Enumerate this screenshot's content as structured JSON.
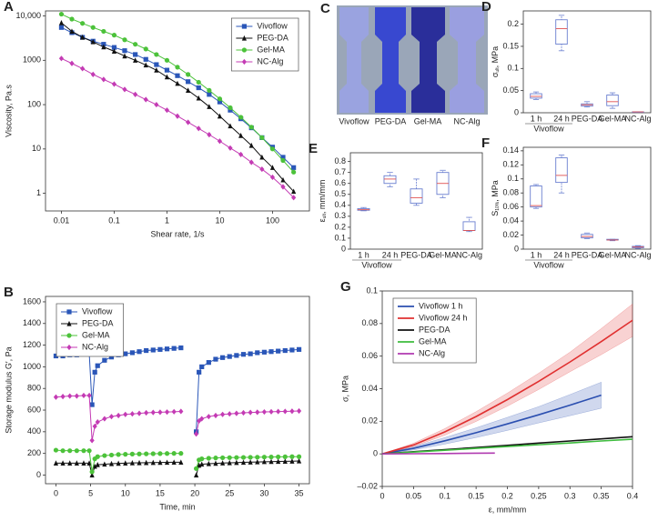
{
  "chart_data": [
    {
      "type": "line",
      "label": "A",
      "xlog": true,
      "ylog": true,
      "legend": "upper right",
      "xlabel": "Shear rate, 1/s",
      "ylabel": "Viscosity, Pa.s",
      "x": [
        0.01,
        0.0158,
        0.0251,
        0.0398,
        0.0631,
        0.1,
        0.158,
        0.251,
        0.398,
        0.631,
        1,
        1.58,
        2.51,
        3.98,
        6.31,
        10,
        15.8,
        25.1,
        39.8,
        63.1,
        100,
        158,
        251
      ],
      "xlim": [
        0.005,
        500
      ],
      "ylim": [
        0.4,
        13000
      ],
      "xticks": [
        0.01,
        0.1,
        1,
        10,
        100
      ],
      "yticks": [
        1,
        10,
        100,
        1000,
        {
          "value": 10000,
          "label": "10,000"
        }
      ],
      "series": [
        {
          "name": "Vivoflow",
          "color": "#2a56b8",
          "marker": "square",
          "values": [
            5500,
            4200,
            3300,
            2700,
            2300,
            1950,
            1650,
            1350,
            1050,
            800,
            600,
            450,
            330,
            240,
            170,
            115,
            75,
            48,
            30,
            18,
            11,
            6.5,
            3.8
          ]
        },
        {
          "name": "PEG-DA",
          "color": "#111111",
          "marker": "triangle",
          "values": [
            7000,
            4500,
            3300,
            2600,
            2000,
            1600,
            1250,
            1000,
            780,
            600,
            420,
            300,
            210,
            140,
            90,
            55,
            33,
            20,
            12,
            6.5,
            3.8,
            2,
            1.1
          ]
        },
        {
          "name": "Gel-MA",
          "color": "#4cc23a",
          "marker": "circle",
          "values": [
            11000,
            8500,
            6800,
            5500,
            4500,
            3700,
            2900,
            2300,
            1800,
            1350,
            1000,
            700,
            480,
            320,
            210,
            135,
            85,
            52,
            31,
            18,
            10,
            5.5,
            3
          ]
        },
        {
          "name": "NC-Alg",
          "color": "#c43bb4",
          "marker": "diamond",
          "values": [
            1100,
            850,
            650,
            480,
            370,
            290,
            220,
            170,
            130,
            100,
            75,
            55,
            40,
            29,
            21,
            15,
            10.5,
            7.5,
            5,
            3.5,
            2.3,
            1.4,
            0.8
          ]
        }
      ]
    },
    {
      "type": "line",
      "label": "B",
      "legend": "upper left",
      "xlabel": "Time, min",
      "ylabel": "Storage modulus G′, Pa",
      "x": [
        0,
        1,
        2,
        3,
        4,
        4.8,
        5.2,
        5.6,
        6,
        7,
        8,
        9,
        10,
        11,
        12,
        13,
        14,
        15,
        16,
        17,
        18,
        19,
        20.2,
        20.6,
        21,
        22,
        23,
        24,
        25,
        26,
        27,
        28,
        29,
        30,
        31,
        32,
        33,
        34,
        35
      ],
      "xlim": [
        -1.5,
        36.5
      ],
      "ylim": [
        -80,
        1650
      ],
      "xticks": [
        0,
        5,
        10,
        15,
        20,
        25,
        30,
        35
      ],
      "yticks": [
        0,
        200,
        400,
        600,
        800,
        1000,
        1200,
        1400,
        1600
      ],
      "series": [
        {
          "name": "Vivoflow",
          "color": "#2a56b8",
          "marker": "square",
          "values": [
            1100,
            1100,
            1110,
            1110,
            1120,
            1120,
            650,
            950,
            1010,
            1060,
            1090,
            1110,
            1120,
            1130,
            1140,
            1150,
            1155,
            1160,
            1165,
            1170,
            1175,
            null,
            400,
            950,
            1000,
            1040,
            1070,
            1085,
            1095,
            1105,
            1115,
            1120,
            1130,
            1135,
            1140,
            1145,
            1150,
            1155,
            1160
          ]
        },
        {
          "name": "PEG-DA",
          "color": "#111111",
          "marker": "triangle",
          "values": [
            110,
            110,
            110,
            110,
            110,
            110,
            0,
            80,
            95,
            100,
            105,
            108,
            110,
            112,
            113,
            114,
            115,
            116,
            117,
            118,
            118,
            null,
            0,
            90,
            100,
            105,
            108,
            111,
            113,
            115,
            117,
            119,
            121,
            123,
            124,
            126,
            127,
            128,
            130
          ]
        },
        {
          "name": "Gel-MA",
          "color": "#4cc23a",
          "marker": "circle",
          "values": [
            230,
            225,
            225,
            225,
            225,
            225,
            30,
            150,
            170,
            180,
            185,
            190,
            192,
            194,
            195,
            196,
            197,
            198,
            199,
            200,
            200,
            null,
            60,
            140,
            150,
            155,
            158,
            160,
            161,
            162,
            163,
            164,
            165,
            166,
            167,
            168,
            169,
            170,
            170
          ]
        },
        {
          "name": "NC-Alg",
          "color": "#c43bb4",
          "marker": "diamond",
          "values": [
            720,
            725,
            730,
            730,
            735,
            735,
            320,
            450,
            490,
            520,
            540,
            550,
            560,
            565,
            570,
            575,
            578,
            580,
            582,
            585,
            588,
            null,
            380,
            500,
            520,
            540,
            550,
            560,
            565,
            570,
            575,
            578,
            580,
            583,
            585,
            587,
            588,
            590,
            592
          ]
        }
      ]
    },
    {
      "type": "box",
      "label": "D",
      "ylabel": {
        "symbol": "σ",
        "sub": "ult",
        "unit": ", MPa"
      },
      "categories": [
        "1 h",
        "24 h",
        "PEG-DA",
        "Gel-MA",
        "NC-Alg"
      ],
      "group": {
        "name": "Vivoflow",
        "span": [
          0,
          1
        ]
      },
      "ylim": [
        0,
        0.23
      ],
      "yticks": [
        0,
        0.05,
        0.1,
        0.15,
        0.2
      ],
      "box_color": "#6a7fd0",
      "median_color": "#e05050",
      "stats": [
        [
          0.03,
          0.033,
          0.037,
          0.043,
          0.047
        ],
        [
          0.14,
          0.155,
          0.19,
          0.21,
          0.22
        ],
        [
          0.013,
          0.015,
          0.018,
          0.02,
          0.025
        ],
        [
          0.01,
          0.016,
          0.025,
          0.04,
          0.045
        ],
        [
          0.001,
          0.001,
          0.002,
          0.002,
          0.002
        ]
      ]
    },
    {
      "type": "box",
      "label": "E",
      "ylabel": {
        "symbol": "ε",
        "sub": "ult",
        "unit": ", mm/mm"
      },
      "categories": [
        "1 h",
        "24 h",
        "PEG-DA",
        "Gel-MA",
        "NC-Alg"
      ],
      "group": {
        "name": "Vivoflow",
        "span": [
          0,
          1
        ]
      },
      "ylim": [
        0,
        0.88
      ],
      "yticks": [
        0,
        0.1,
        0.2,
        0.3,
        0.4,
        0.5,
        0.6,
        0.7,
        0.8
      ],
      "box_color": "#6a7fd0",
      "median_color": "#e05050",
      "stats": [
        [
          0.35,
          0.355,
          0.36,
          0.37,
          0.38
        ],
        [
          0.57,
          0.6,
          0.64,
          0.67,
          0.7
        ],
        [
          0.4,
          0.42,
          0.47,
          0.55,
          0.64
        ],
        [
          0.47,
          0.5,
          0.6,
          0.7,
          0.72
        ],
        [
          0.16,
          0.17,
          0.17,
          0.25,
          0.29
        ]
      ]
    },
    {
      "type": "box",
      "label": "F",
      "ylabel": {
        "symbol": "S",
        "sub": "10%",
        "unit": ", MPa"
      },
      "categories": [
        "1 h",
        "24 h",
        "PEG-DA",
        "Gel-MA",
        "NC-Alg"
      ],
      "group": {
        "name": "Vivoflow",
        "span": [
          0,
          1
        ]
      },
      "ylim": [
        0,
        0.145
      ],
      "yticks": [
        0,
        0.02,
        0.04,
        0.06,
        0.08,
        0.1,
        0.12,
        0.14
      ],
      "box_color": "#6a7fd0",
      "median_color": "#e05050",
      "stats": [
        [
          0.058,
          0.06,
          0.062,
          0.09,
          0.092
        ],
        [
          0.08,
          0.095,
          0.105,
          0.13,
          0.134
        ],
        [
          0.015,
          0.016,
          0.018,
          0.021,
          0.023
        ],
        [
          0.012,
          0.013,
          0.013,
          0.014,
          0.014
        ],
        [
          0.001,
          0.002,
          0.003,
          0.004,
          0.005
        ]
      ]
    },
    {
      "type": "line",
      "label": "G",
      "legend": "upper left",
      "xlabel": "ε, mm/mm",
      "ylabel": "σ, MPa",
      "xlim": [
        0,
        0.4
      ],
      "ylim": [
        -0.02,
        0.1
      ],
      "xticks": [
        0,
        0.05,
        0.1,
        0.15,
        0.2,
        0.25,
        0.3,
        0.35,
        0.4
      ],
      "yticks": [
        {
          "value": -0.02,
          "label": "–0.02"
        },
        0,
        0.02,
        0.04,
        0.06,
        0.08,
        0.1
      ],
      "series": [
        {
          "name": "Vivoflow 1 h",
          "color": "#2b4fb0",
          "x": [
            0,
            0.05,
            0.1,
            0.15,
            0.2,
            0.25,
            0.3,
            0.35
          ],
          "values": [
            0,
            0.0034,
            0.008,
            0.013,
            0.0184,
            0.024,
            0.0299,
            0.036
          ],
          "errors": [
            0,
            0.001,
            0.002,
            0.003,
            0.004,
            0.005,
            0.0065,
            0.008
          ]
        },
        {
          "name": "Vivoflow 24 h",
          "color": "#e03030",
          "x": [
            0,
            0.05,
            0.1,
            0.15,
            0.2,
            0.25,
            0.3,
            0.35,
            0.4
          ],
          "values": [
            0,
            0.0055,
            0.0135,
            0.0229,
            0.0333,
            0.0445,
            0.0564,
            0.0689,
            0.082
          ],
          "errors": [
            0,
            0.001,
            0.002,
            0.003,
            0.004,
            0.005,
            0.006,
            0.008,
            0.01
          ]
        },
        {
          "name": "PEG-DA",
          "color": "#111111",
          "x": [
            0,
            0.05,
            0.1,
            0.15,
            0.2,
            0.25,
            0.3,
            0.35,
            0.4
          ],
          "values": [
            0,
            0.0013,
            0.0026,
            0.0039,
            0.0052,
            0.0066,
            0.0079,
            0.0092,
            0.0105
          ]
        },
        {
          "name": "Gel-MA",
          "color": "#3dbb3d",
          "x": [
            0,
            0.05,
            0.1,
            0.15,
            0.2,
            0.25,
            0.3,
            0.35,
            0.4
          ],
          "values": [
            0,
            0.0011,
            0.0022,
            0.0034,
            0.0045,
            0.0056,
            0.0067,
            0.0079,
            0.009
          ]
        },
        {
          "name": "NC-Alg",
          "color": "#b03ab0",
          "x": [
            0,
            0.05,
            0.1,
            0.15,
            0.18
          ],
          "values": [
            0,
            0.0001,
            0.0002,
            0.0004,
            0.0005
          ]
        }
      ]
    }
  ],
  "photo": {
    "label": "C",
    "captions": [
      "Vivoflow",
      "PEG-DA",
      "Gel-MA",
      "NC-Alg"
    ]
  }
}
